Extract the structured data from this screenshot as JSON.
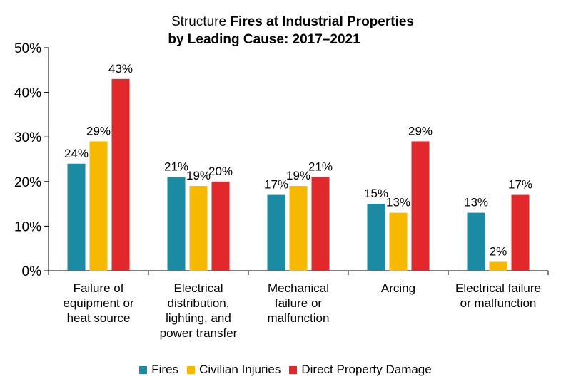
{
  "chart_data": {
    "type": "bar",
    "title_part1": "Structure",
    "title_part2": "Fires at Industrial Properties",
    "title_line2": "by Leading Cause: 2017–2021",
    "categories": [
      [
        "Failure of",
        "equipment or",
        "heat source"
      ],
      [
        "Electrical",
        "distribution,",
        "lighting, and",
        "power transfer"
      ],
      [
        "Mechanical",
        "failure or",
        "malfunction"
      ],
      [
        "Arcing"
      ],
      [
        "Electrical failure",
        "or malfunction"
      ]
    ],
    "series": [
      {
        "name": "Fires",
        "color": "#1a8ba3",
        "values": [
          24,
          21,
          17,
          15,
          13
        ],
        "labels": [
          "24%",
          "21%",
          "17%",
          "15%",
          "13%"
        ]
      },
      {
        "name": "Civilian Injuries",
        "color": "#f7b800",
        "values": [
          29,
          19,
          19,
          13,
          2
        ],
        "labels": [
          "29%",
          "19%",
          "19%",
          "13%",
          "2%"
        ]
      },
      {
        "name": "Direct Property Damage",
        "color": "#e2282a",
        "values": [
          43,
          20,
          21,
          29,
          17
        ],
        "labels": [
          "43%",
          "20%",
          "21%",
          "29%",
          "17%"
        ]
      }
    ],
    "ylim": [
      0,
      50
    ],
    "yticks": [
      0,
      10,
      20,
      30,
      40,
      50
    ],
    "ytick_labels": [
      "0%",
      "10%",
      "20%",
      "30%",
      "40%",
      "50%"
    ],
    "grid": false,
    "legend_position": "bottom"
  }
}
